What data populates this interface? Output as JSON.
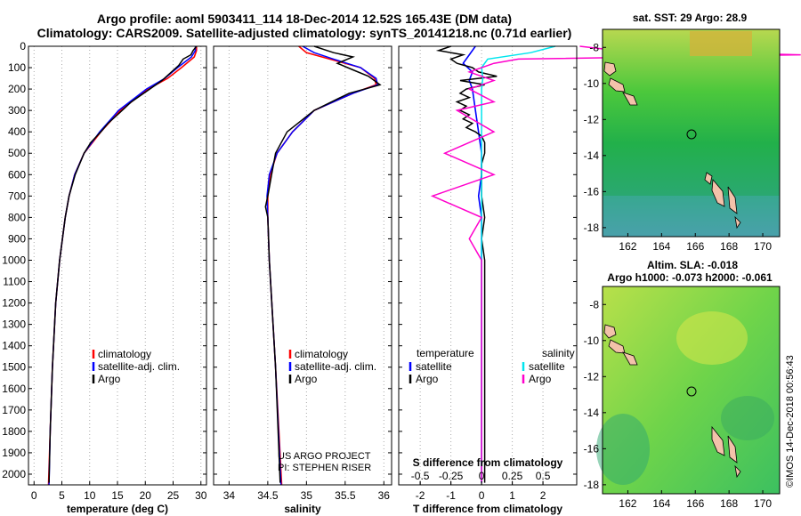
{
  "header": {
    "title_line1": "Argo profile: aoml 5903411_114 18-Dec-2014 12.52S 165.43E (DM data)",
    "title_line2": "Climatology: CARS2009. Satellite-adjusted climatology: synTS_20141218.nc (0.71d earlier)"
  },
  "colors": {
    "climatology": "#ff0000",
    "satellite": "#0000ff",
    "argo": "#000000",
    "satellite_salinity": "#00e5ee",
    "argo_salinity": "#ff00cc"
  },
  "chart_data": [
    {
      "type": "line",
      "id": "temperature",
      "xlabel": "temperature (deg C)",
      "ylabel": "",
      "xlim": [
        -1,
        31
      ],
      "ylim": [
        2050,
        0
      ],
      "xticks": [
        0,
        5,
        10,
        15,
        20,
        25,
        30
      ],
      "yticks": [
        0,
        100,
        200,
        300,
        400,
        500,
        600,
        700,
        800,
        900,
        1000,
        1100,
        1200,
        1300,
        1400,
        1500,
        1600,
        1700,
        1800,
        1900,
        2000
      ],
      "legend": [
        "climatology",
        "satellite-adj. clim.",
        "Argo"
      ],
      "series": [
        {
          "name": "climatology",
          "color": "#ff0000",
          "depth": [
            0,
            20,
            50,
            100,
            150,
            200,
            300,
            400,
            500,
            600,
            700,
            800,
            1000,
            1200,
            1500,
            1800,
            2050
          ],
          "values": [
            29.2,
            29.2,
            28.8,
            26.5,
            24.0,
            20.5,
            15.5,
            12.0,
            9.0,
            7.3,
            6.3,
            5.6,
            4.6,
            3.9,
            3.3,
            2.9,
            2.6
          ]
        },
        {
          "name": "satellite-adj. clim.",
          "color": "#0000ff",
          "depth": [
            0,
            20,
            50,
            100,
            150,
            200,
            300,
            400,
            500,
            600,
            700,
            800,
            1000,
            1200,
            1500,
            1800,
            2050
          ],
          "values": [
            29.0,
            29.0,
            28.3,
            25.8,
            23.5,
            20.2,
            15.2,
            11.8,
            9.0,
            7.3,
            6.3,
            5.6,
            4.6,
            3.9,
            3.3,
            2.9,
            2.7
          ]
        },
        {
          "name": "Argo",
          "color": "#000000",
          "depth": [
            0,
            20,
            40,
            60,
            90,
            120,
            160,
            200,
            260,
            320,
            360,
            400,
            450,
            500,
            600,
            700,
            800,
            1000,
            1200,
            1500,
            1800,
            2040
          ],
          "values": [
            29.2,
            28.6,
            28.2,
            26.8,
            26.0,
            24.7,
            23.0,
            20.8,
            17.5,
            15.0,
            13.3,
            12.0,
            10.2,
            9.0,
            7.4,
            6.3,
            5.6,
            4.6,
            3.9,
            3.3,
            2.9,
            2.7
          ]
        }
      ]
    },
    {
      "type": "line",
      "id": "salinity",
      "xlabel": "salinity",
      "xlim": [
        33.8,
        36.1
      ],
      "ylim": [
        2050,
        0
      ],
      "xticks": [
        34,
        34.5,
        35,
        35.5,
        36
      ],
      "legend": [
        "climatology",
        "satellite-adj. clim.",
        "Argo"
      ],
      "footnote": [
        "US ARGO PROJECT",
        "PI: STEPHEN RISER"
      ],
      "series": [
        {
          "name": "climatology",
          "color": "#ff0000",
          "depth": [
            0,
            30,
            60,
            100,
            150,
            180,
            220,
            300,
            400,
            500,
            600,
            700,
            800,
            1000,
            1500,
            2050
          ],
          "values": [
            34.9,
            35.0,
            35.3,
            35.7,
            35.88,
            35.9,
            35.6,
            35.1,
            34.82,
            34.62,
            34.53,
            34.5,
            34.5,
            34.52,
            34.6,
            34.68
          ]
        },
        {
          "name": "satellite-adj. clim.",
          "color": "#0000ff",
          "depth": [
            0,
            30,
            60,
            100,
            150,
            180,
            220,
            300,
            400,
            500,
            600,
            700,
            800,
            1000,
            1500,
            2050
          ],
          "values": [
            34.95,
            35.1,
            35.35,
            35.7,
            35.9,
            35.92,
            35.6,
            35.1,
            34.82,
            34.62,
            34.52,
            34.49,
            34.5,
            34.52,
            34.6,
            34.67
          ]
        },
        {
          "name": "Argo",
          "color": "#000000",
          "depth": [
            0,
            30,
            50,
            80,
            110,
            140,
            180,
            220,
            300,
            400,
            500,
            600,
            700,
            750,
            800,
            1000,
            1500,
            2040
          ],
          "values": [
            35.1,
            35.35,
            35.6,
            35.4,
            35.6,
            35.8,
            35.95,
            35.55,
            35.1,
            34.75,
            34.6,
            34.55,
            34.5,
            34.47,
            34.5,
            34.52,
            34.6,
            34.66
          ]
        }
      ]
    },
    {
      "type": "line",
      "id": "difference",
      "xlabel": "T difference from climatology",
      "xlabel2": "S difference from climatology",
      "xlim": [
        -2.7,
        3.1
      ],
      "ylim": [
        2050,
        0
      ],
      "xticks": [
        -2,
        -1,
        0,
        1,
        2
      ],
      "s_xticks": [
        "-0.5",
        "-0.25",
        "0",
        "0.25",
        "0.5"
      ],
      "s_xtick_values": [
        -0.5,
        -0.25,
        0,
        0.25,
        0.5
      ],
      "s_scale": 4,
      "legend_left_title": "temperature",
      "legend_right_title": "salinity",
      "legend": [
        "satellite",
        "Argo"
      ],
      "series": [
        {
          "name": "satellite T",
          "color": "#0000ff",
          "depth": [
            0,
            40,
            80,
            120,
            160,
            200,
            300,
            400,
            500,
            600,
            700,
            800,
            1000,
            2040
          ],
          "values": [
            -0.2,
            -0.4,
            -0.6,
            -0.3,
            -0.4,
            -0.3,
            -0.2,
            -0.1,
            0,
            0,
            -0.1,
            0,
            0,
            0
          ]
        },
        {
          "name": "Argo T",
          "color": "#000000",
          "depth": [
            0,
            20,
            40,
            60,
            80,
            100,
            120,
            140,
            160,
            180,
            200,
            220,
            240,
            260,
            280,
            300,
            320,
            340,
            360,
            380,
            400,
            420,
            450,
            500,
            550,
            600,
            700,
            800,
            900,
            1000,
            1200,
            1400,
            1600,
            1800,
            2040
          ],
          "values": [
            -1.0,
            -1.4,
            -0.6,
            -1.0,
            -0.8,
            -0.3,
            -0.1,
            0.5,
            -0.7,
            0.1,
            -0.5,
            -0.7,
            -0.4,
            -0.8,
            -0.5,
            -0.7,
            -0.4,
            -0.6,
            -0.3,
            -0.5,
            -0.2,
            0,
            0.1,
            0.1,
            0,
            0,
            0,
            0.1,
            0,
            0.1,
            0.1,
            0.1,
            0.1,
            0.1,
            0.1
          ]
        },
        {
          "name": "satellite S",
          "color": "#00e5ee",
          "depth": [
            0,
            30,
            60,
            100,
            150,
            200,
            300,
            400,
            600,
            800,
            1000,
            1500,
            2040
          ],
          "values": [
            0.6,
            0.4,
            0.05,
            0.0,
            0.01,
            0.0,
            0.0,
            0.0,
            0.0,
            0.0,
            0.0,
            0.0,
            0.0
          ]
        },
        {
          "name": "Argo S",
          "color": "#ff00cc",
          "depth": [
            0,
            20,
            40,
            60,
            80,
            120,
            160,
            200,
            260,
            300,
            400,
            500,
            600,
            700,
            800,
            900,
            1000,
            1500,
            2040
          ],
          "values": [
            0.8,
            1.1,
            2.6,
            0.3,
            0.1,
            -0.1,
            0.1,
            -0.1,
            0.1,
            -0.2,
            0.1,
            -0.3,
            0.1,
            -0.4,
            0.0,
            -0.1,
            0.0,
            0.0,
            0.0
          ]
        }
      ]
    },
    {
      "type": "heatmap",
      "id": "sst-map",
      "title": "sat. SST: 29 Argo: 28.9",
      "xlim": [
        160.5,
        171
      ],
      "ylim": [
        -18.5,
        -7
      ],
      "xticks": [
        162,
        164,
        166,
        168,
        170
      ],
      "yticks": [
        -8,
        -10,
        -12,
        -14,
        -16,
        -18
      ],
      "marker": {
        "lon": 165.43,
        "lat": -12.52
      }
    },
    {
      "type": "heatmap",
      "id": "sla-map",
      "title": "Altim. SLA: -0.018",
      "subtitle": "Argo h1000: -0.073 h2000: -0.061",
      "xlim": [
        160.5,
        171
      ],
      "ylim": [
        -18.5,
        -7
      ],
      "xticks": [
        162,
        164,
        166,
        168,
        170
      ],
      "yticks": [
        -8,
        -10,
        -12,
        -14,
        -16,
        -18
      ],
      "marker": {
        "lon": 165.43,
        "lat": -12.52
      }
    }
  ],
  "credit": "©IMOS 14-Dec-2018 00:56:43"
}
